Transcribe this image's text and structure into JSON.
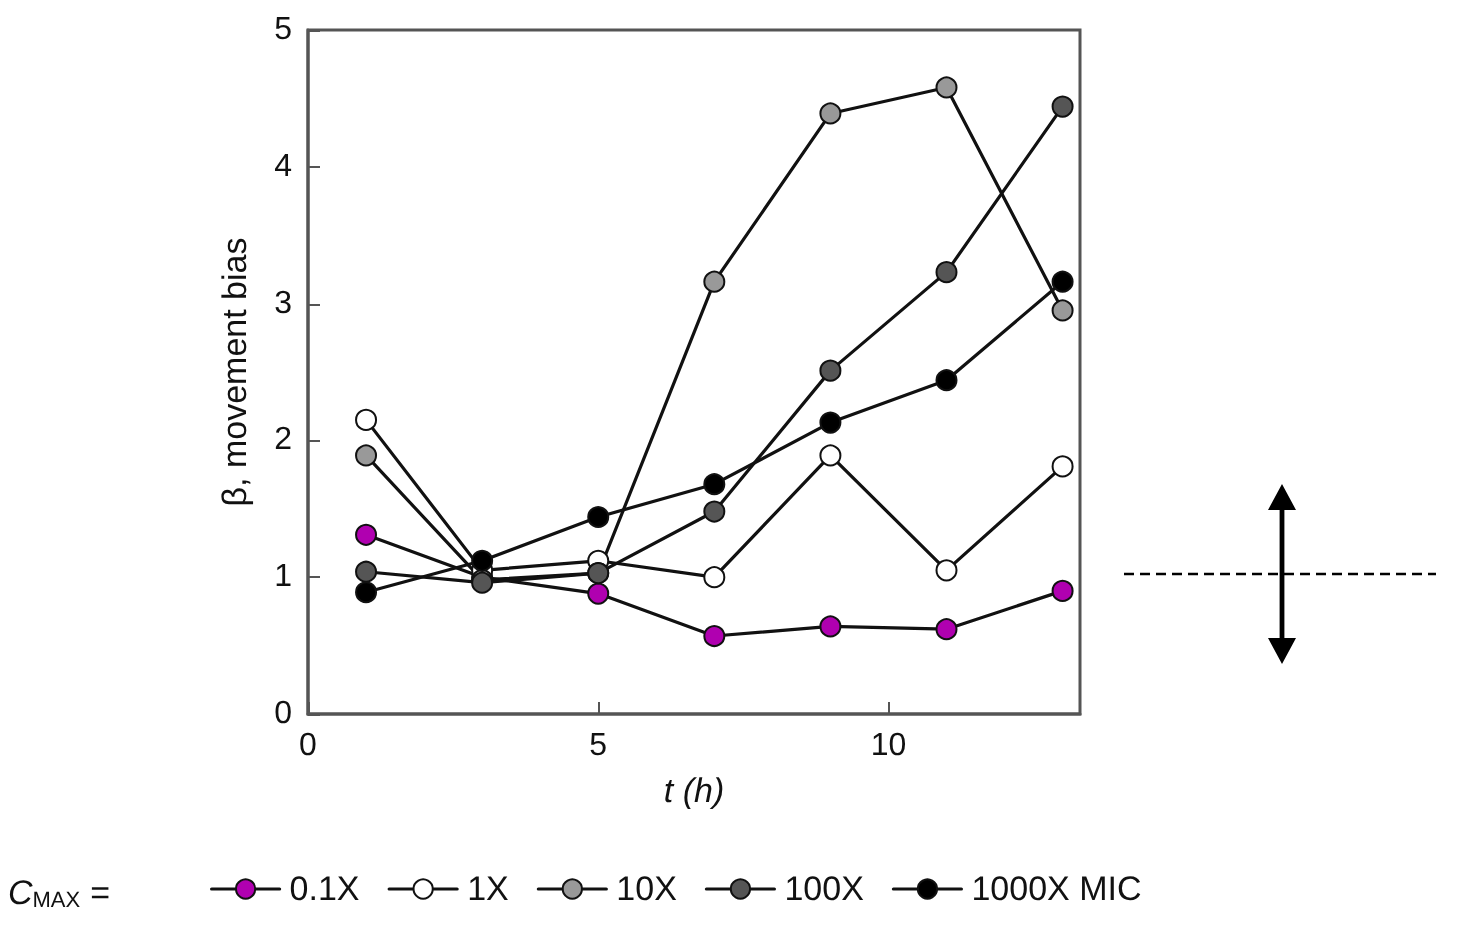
{
  "chart_data": {
    "type": "line",
    "xlabel": "t (h)",
    "ylabel": "β, movement bias",
    "legend_title": "C$_{MAX}$ =",
    "x": [
      1,
      3,
      5,
      7,
      9,
      11,
      13
    ],
    "xlim": [
      0,
      13.3
    ],
    "xticks": [
      0,
      5,
      10
    ],
    "ylim": [
      0,
      5
    ],
    "yticks": [
      0,
      1,
      2,
      3,
      4,
      5
    ],
    "grid": false,
    "legend": "bottom",
    "marker": "circle",
    "line_style": "solid",
    "series": [
      {
        "name": "0.1X",
        "color": "#b000b0",
        "values": [
          1.31,
          1.0,
          0.88,
          0.57,
          0.64,
          0.62,
          0.9
        ]
      },
      {
        "name": "1X",
        "color": "#ffffff",
        "values": [
          2.15,
          1.05,
          1.12,
          1.0,
          1.89,
          1.05,
          1.81
        ]
      },
      {
        "name": "10X",
        "color": "#999999",
        "values": [
          1.89,
          0.98,
          1.03,
          3.16,
          4.39,
          4.58,
          2.95
        ]
      },
      {
        "name": "100X",
        "color": "#555555",
        "values": [
          1.04,
          0.96,
          1.03,
          1.48,
          2.51,
          3.23,
          4.44
        ]
      },
      {
        "name": "1000X MIC",
        "color": "#000000",
        "values": [
          0.89,
          1.12,
          1.44,
          1.68,
          2.13,
          2.44,
          3.16
        ]
      }
    ]
  }
}
